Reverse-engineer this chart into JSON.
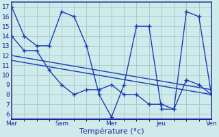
{
  "xlabel": "Température (°c)",
  "background_color": "#ceeaea",
  "grid_color": "#a8cccc",
  "line_color": "#1a3ab5",
  "xlim": [
    0,
    96
  ],
  "ylim": [
    5.5,
    17.5
  ],
  "x_tick_positions": [
    0,
    24,
    48,
    72,
    96
  ],
  "x_tick_labels": [
    "Mar",
    "Sam",
    "Mer",
    "Jeu",
    "Ven"
  ],
  "y_ticks": [
    6,
    7,
    8,
    9,
    10,
    11,
    12,
    13,
    14,
    15,
    16,
    17
  ],
  "line1_x": [
    0,
    6,
    12,
    18,
    24,
    30,
    36,
    42,
    48,
    54,
    60,
    66,
    72,
    78,
    84,
    90,
    96
  ],
  "line1_y": [
    17,
    14,
    13,
    13,
    16.5,
    16,
    13,
    8,
    5.7,
    9,
    15,
    15,
    6.5,
    6.5,
    16.5,
    16,
    8
  ],
  "line2_x": [
    0,
    6,
    12,
    18,
    24,
    30,
    36,
    42,
    48,
    54,
    60,
    66,
    72,
    78,
    84,
    90,
    96
  ],
  "line2_y": [
    14,
    12.5,
    12.5,
    10.5,
    9,
    8,
    8.5,
    8.5,
    9,
    8,
    8,
    7,
    7,
    6.5,
    9.5,
    9,
    8
  ],
  "line3_x": [
    0,
    96
  ],
  "line3_y": [
    12.0,
    8.5
  ],
  "line4_x": [
    0,
    96
  ],
  "line4_y": [
    11.5,
    8.0
  ],
  "tick_fontsize": 6.5,
  "xlabel_fontsize": 8
}
